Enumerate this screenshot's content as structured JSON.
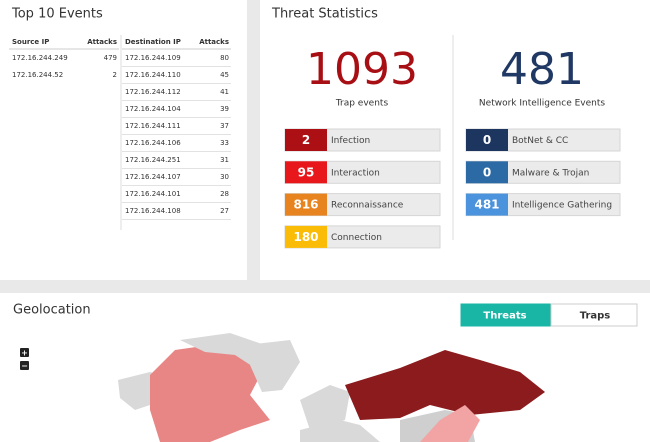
{
  "top10": {
    "title": "Top 10 Events",
    "source": {
      "headers": [
        "Source IP",
        "Attacks"
      ],
      "rows": [
        [
          "172.16.244.249",
          479
        ],
        [
          "172.16.244.52",
          2
        ]
      ]
    },
    "destination": {
      "headers": [
        "Destination IP",
        "Attacks"
      ],
      "rows": [
        [
          "172.16.244.109",
          80
        ],
        [
          "172.16.244.110",
          45
        ],
        [
          "172.16.244.112",
          41
        ],
        [
          "172.16.244.104",
          39
        ],
        [
          "172.16.244.111",
          37
        ],
        [
          "172.16.244.106",
          33
        ],
        [
          "172.16.244.251",
          31
        ],
        [
          "172.16.244.107",
          30
        ],
        [
          "172.16.244.101",
          28
        ],
        [
          "172.16.244.108",
          27
        ]
      ]
    }
  },
  "threat_stats": {
    "title": "Threat Statistics",
    "trap": {
      "total": 1093,
      "label": "Trap events",
      "color": "#a80f14",
      "items": [
        {
          "value": 2,
          "label": "Infection",
          "color": "#ad1014"
        },
        {
          "value": 95,
          "label": "Interaction",
          "color": "#e8171c"
        },
        {
          "value": 816,
          "label": "Reconnaissance",
          "color": "#e8841f"
        },
        {
          "value": 180,
          "label": "Connection",
          "color": "#fbbc08"
        }
      ]
    },
    "network": {
      "total": 481,
      "label": "Network Intelligence Events",
      "color": "#1f3864",
      "items": [
        {
          "value": 0,
          "label": "BotNet & CC",
          "color": "#1c3660"
        },
        {
          "value": 0,
          "label": "Malware & Trojan",
          "color": "#2c6aa5"
        },
        {
          "value": 481,
          "label": "Intelligence Gathering",
          "color": "#4b93dc"
        }
      ]
    }
  },
  "geolocation": {
    "title": "Geolocation",
    "tabs": [
      "Threats",
      "Traps"
    ],
    "zoom": [
      "+",
      "−"
    ]
  }
}
